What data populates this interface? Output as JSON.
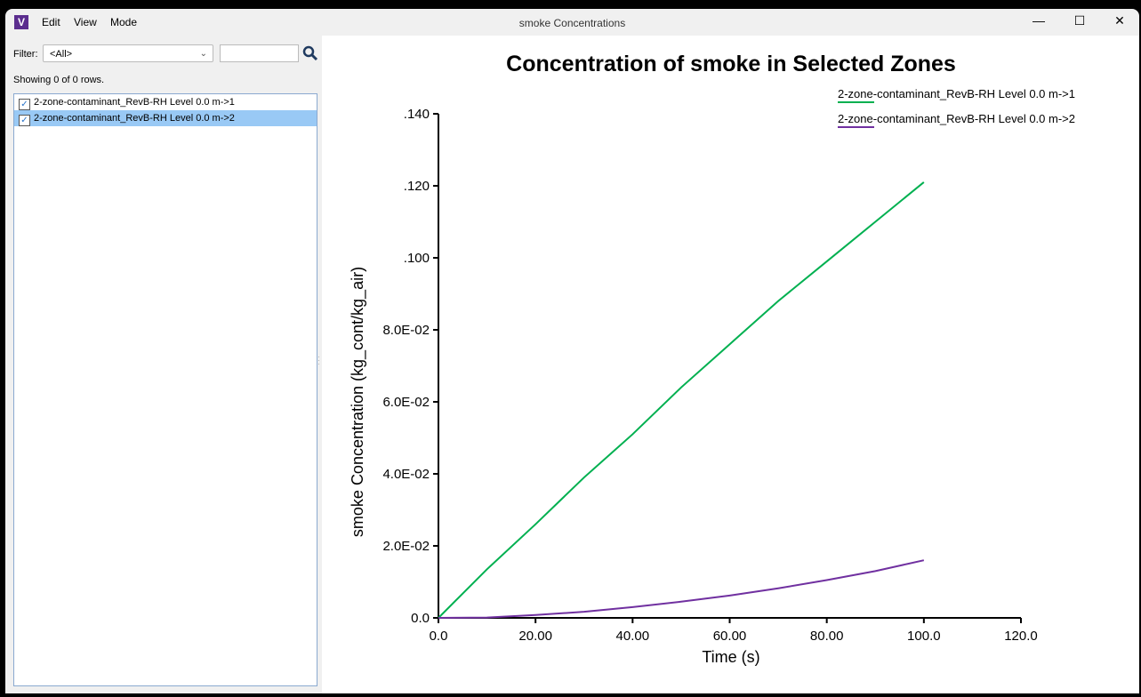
{
  "window": {
    "title": "smoke Concentrations",
    "menu": [
      "Edit",
      "View",
      "Mode"
    ],
    "minimize": "—",
    "maximize": "☐",
    "close": "✕"
  },
  "left_panel": {
    "filter_label": "Filter:",
    "filter_value": "<All>",
    "search_value": "",
    "showing": "Showing 0 of 0 rows.",
    "items": [
      {
        "label": "2-zone-contaminant_RevB-RH Level 0.0 m->1",
        "checked": true,
        "selected": false
      },
      {
        "label": "2-zone-contaminant_RevB-RH Level 0.0 m->2",
        "checked": true,
        "selected": true
      }
    ]
  },
  "chart_data": {
    "type": "line",
    "title": "Concentration of smoke in Selected Zones",
    "xlabel": "Time (s)",
    "ylabel": "smoke Concentration (kg_cont/kg_air)",
    "xlim": [
      0,
      120
    ],
    "ylim": [
      0,
      0.14
    ],
    "xticks": [
      0,
      20,
      40,
      60,
      80,
      100,
      120
    ],
    "xtick_labels": [
      "0.0",
      "20.00",
      "40.00",
      "60.00",
      "80.00",
      "100.0",
      "120.0"
    ],
    "yticks": [
      0,
      0.02,
      0.04,
      0.06,
      0.08,
      0.1,
      0.12,
      0.14
    ],
    "ytick_labels": [
      "0.0",
      "2.0E-02",
      "4.0E-02",
      "6.0E-02",
      "8.0E-02",
      ".100",
      ".120",
      ".140"
    ],
    "grid": false,
    "legend_placement": "top-right",
    "series": [
      {
        "name": "2-zone-contaminant_RevB-RH Level 0.0 m->1",
        "color": "#00b050",
        "x": [
          0,
          10,
          20,
          30,
          40,
          50,
          60,
          70,
          80,
          90,
          100
        ],
        "y": [
          0,
          0.0135,
          0.026,
          0.039,
          0.051,
          0.064,
          0.076,
          0.088,
          0.099,
          0.11,
          0.121
        ]
      },
      {
        "name": "2-zone-contaminant_RevB-RH Level 0.0 m->2",
        "color": "#7030a0",
        "x": [
          0,
          10,
          20,
          30,
          40,
          50,
          60,
          70,
          80,
          90,
          100
        ],
        "y": [
          0,
          0.0001,
          0.0008,
          0.0017,
          0.003,
          0.0045,
          0.0062,
          0.0082,
          0.0105,
          0.013,
          0.016
        ]
      }
    ]
  }
}
